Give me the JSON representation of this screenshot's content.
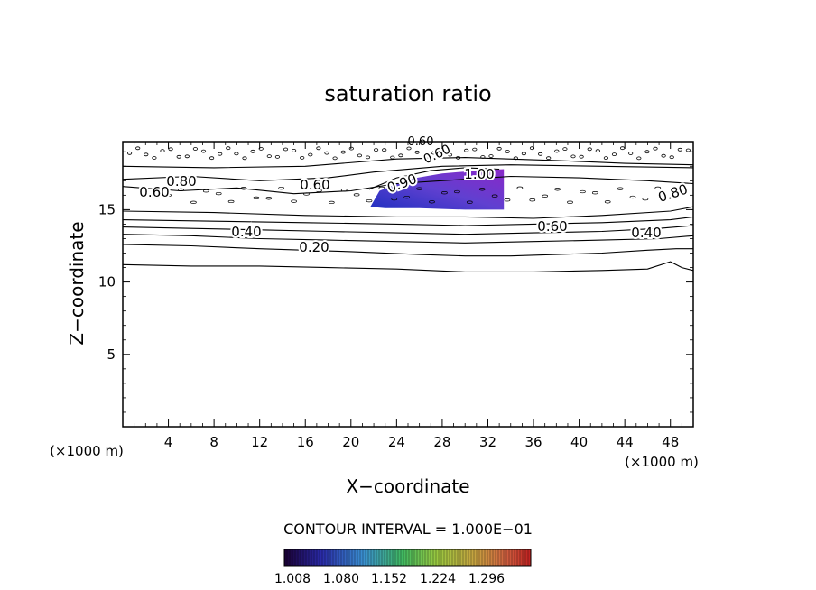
{
  "chart_data": {
    "type": "contour",
    "title": "saturation ratio",
    "xlabel": "X−coordinate",
    "ylabel": "Z−coordinate",
    "x_unit_left": "(×1000 m)",
    "x_unit_right": "(×1000 m)",
    "xlim": [
      0,
      50
    ],
    "ylim": [
      0,
      19.7
    ],
    "x_ticks": [
      4,
      8,
      12,
      16,
      20,
      24,
      28,
      32,
      36,
      40,
      44,
      48
    ],
    "y_ticks": [
      5,
      10,
      15
    ],
    "contour_interval_text": "CONTOUR INTERVAL = 1.000E−01",
    "contour_labels": [
      "0.20",
      "0.40",
      "0.40",
      "0.60",
      "0.60",
      "0.60",
      "0.80",
      "0.80",
      "0.90",
      "1.00",
      "0.60",
      "0.60"
    ],
    "contours": [
      {
        "level": 0.2,
        "points": [
          [
            0,
            12.6
          ],
          [
            6,
            12.5
          ],
          [
            12,
            12.3
          ],
          [
            16,
            12.2
          ],
          [
            20,
            12.1
          ],
          [
            26,
            11.9
          ],
          [
            30,
            11.8
          ],
          [
            34,
            11.8
          ],
          [
            38,
            11.9
          ],
          [
            42,
            12.0
          ],
          [
            46,
            12.2
          ],
          [
            48.5,
            12.3
          ],
          [
            50,
            12.3
          ]
        ]
      },
      {
        "level": 0.3,
        "points": [
          [
            0,
            13.3
          ],
          [
            6,
            13.2
          ],
          [
            12,
            13.0
          ],
          [
            18,
            12.9
          ],
          [
            24,
            12.8
          ],
          [
            30,
            12.7
          ],
          [
            36,
            12.8
          ],
          [
            42,
            12.9
          ],
          [
            47,
            13.0
          ],
          [
            50,
            13.2
          ]
        ]
      },
      {
        "level": 0.4,
        "points": [
          [
            0,
            13.8
          ],
          [
            6,
            13.7
          ],
          [
            12,
            13.6
          ],
          [
            18,
            13.5
          ],
          [
            24,
            13.4
          ],
          [
            30,
            13.3
          ],
          [
            36,
            13.4
          ],
          [
            42,
            13.5
          ],
          [
            47,
            13.7
          ],
          [
            50,
            13.9
          ]
        ]
      },
      {
        "level": 0.5,
        "points": [
          [
            0,
            14.3
          ],
          [
            8,
            14.2
          ],
          [
            16,
            14.1
          ],
          [
            24,
            14.0
          ],
          [
            30,
            13.9
          ],
          [
            36,
            14.0
          ],
          [
            42,
            14.1
          ],
          [
            48,
            14.3
          ],
          [
            50,
            14.5
          ]
        ]
      },
      {
        "level": 0.6,
        "points": [
          [
            0,
            14.9
          ],
          [
            8,
            14.8
          ],
          [
            16,
            14.6
          ],
          [
            24,
            14.5
          ],
          [
            30,
            14.5
          ],
          [
            36,
            14.4
          ],
          [
            42,
            14.6
          ],
          [
            48,
            14.9
          ],
          [
            50,
            15.2
          ]
        ]
      },
      {
        "level": 0.6,
        "points": [
          [
            0,
            16.6
          ],
          [
            5,
            16.3
          ],
          [
            10,
            16.5
          ],
          [
            15,
            16.1
          ],
          [
            20,
            16.3
          ],
          [
            24,
            16.8
          ],
          [
            30,
            17.1
          ],
          [
            34,
            17.3
          ],
          [
            40,
            17.2
          ],
          [
            46,
            17.0
          ],
          [
            50,
            16.8
          ]
        ]
      },
      {
        "level": 0.8,
        "points": [
          [
            0,
            17.1
          ],
          [
            6,
            17.3
          ],
          [
            12,
            17.0
          ],
          [
            18,
            17.2
          ],
          [
            22,
            17.6
          ],
          [
            28,
            18.0
          ],
          [
            34,
            18.1
          ],
          [
            42,
            18.0
          ],
          [
            50,
            17.9
          ]
        ]
      },
      {
        "level": 0.5,
        "points": [
          [
            0,
            18.0
          ],
          [
            8,
            17.9
          ],
          [
            16,
            18.0
          ],
          [
            24,
            18.5
          ],
          [
            30,
            18.6
          ],
          [
            38,
            18.4
          ],
          [
            44,
            18.2
          ],
          [
            50,
            18.1
          ]
        ]
      },
      {
        "level": 1.0,
        "points": [
          [
            21.6,
            16.4
          ],
          [
            24,
            17.2
          ],
          [
            27,
            17.7
          ],
          [
            30,
            17.9
          ],
          [
            33,
            17.8
          ]
        ]
      },
      {
        "level": 0.3,
        "points": [
          [
            0,
            11.2
          ],
          [
            6,
            11.1
          ],
          [
            12,
            11.1
          ],
          [
            18,
            11.0
          ],
          [
            24,
            10.9
          ],
          [
            30,
            10.7
          ],
          [
            36,
            10.7
          ],
          [
            42,
            10.8
          ],
          [
            46,
            10.9
          ],
          [
            48,
            11.4
          ],
          [
            49,
            11.0
          ],
          [
            50,
            10.8
          ]
        ]
      }
    ],
    "filled_region": {
      "level_min": 1.008,
      "level_max": 1.3,
      "points": [
        [
          21.7,
          15.2
        ],
        [
          22.5,
          16.3
        ],
        [
          25,
          17.1
        ],
        [
          28,
          17.5
        ],
        [
          31,
          17.7
        ],
        [
          33.4,
          17.8
        ],
        [
          33.4,
          15.0
        ],
        [
          30,
          15.0
        ],
        [
          26,
          15.1
        ],
        [
          23,
          15.1
        ]
      ]
    },
    "colorbar": {
      "ticks": [
        "1.008",
        "1.080",
        "1.152",
        "1.224",
        "1.296"
      ],
      "vmin": 1.008,
      "vmax": 1.32
    }
  }
}
